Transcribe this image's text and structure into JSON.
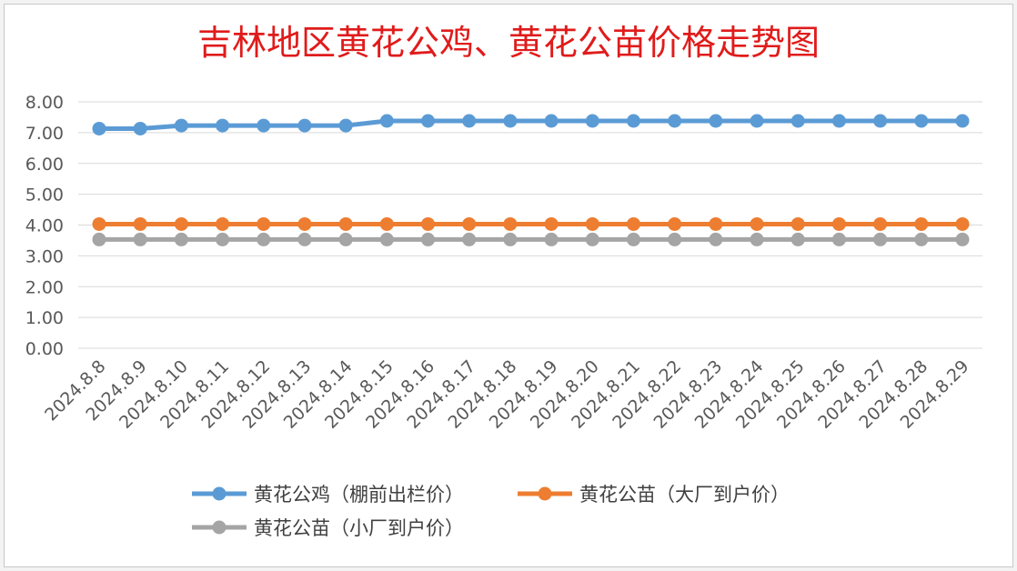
{
  "chart_data": {
    "type": "line",
    "title": "吉林地区黄花公鸡、黄花公苗价格走势图",
    "title_color": "#e01b1b",
    "categories": [
      "2024.8.8",
      "2024.8.9",
      "2024.8.10",
      "2024.8.11",
      "2024.8.12",
      "2024.8.13",
      "2024.8.14",
      "2024.8.15",
      "2024.8.16",
      "2024.8.17",
      "2024.8.18",
      "2024.8.19",
      "2024.8.20",
      "2024.8.21",
      "2024.8.22",
      "2024.8.23",
      "2024.8.24",
      "2024.8.25",
      "2024.8.26",
      "2024.8.27",
      "2024.8.28",
      "2024.8.29"
    ],
    "y_ticks": [
      "0.00",
      "1.00",
      "2.00",
      "3.00",
      "4.00",
      "5.00",
      "6.00",
      "7.00",
      "8.00"
    ],
    "ylim": [
      0,
      8
    ],
    "grid": true,
    "legend_position": "bottom",
    "series": [
      {
        "name": "黄花公鸡（棚前出栏价）",
        "color": "#5b9bd5",
        "values": [
          7.13,
          7.13,
          7.23,
          7.23,
          7.23,
          7.23,
          7.23,
          7.38,
          7.38,
          7.38,
          7.38,
          7.38,
          7.38,
          7.38,
          7.38,
          7.38,
          7.38,
          7.38,
          7.38,
          7.38,
          7.38,
          7.38
        ]
      },
      {
        "name": "黄花公苗（大厂到户价）",
        "color": "#ed7d31",
        "values": [
          4.03,
          4.03,
          4.03,
          4.03,
          4.03,
          4.03,
          4.03,
          4.03,
          4.03,
          4.03,
          4.03,
          4.03,
          4.03,
          4.03,
          4.03,
          4.03,
          4.03,
          4.03,
          4.03,
          4.03,
          4.03,
          4.03
        ]
      },
      {
        "name": "黄花公苗（小厂到户价）",
        "color": "#a5a5a5",
        "values": [
          3.53,
          3.53,
          3.53,
          3.53,
          3.53,
          3.53,
          3.53,
          3.53,
          3.53,
          3.53,
          3.53,
          3.53,
          3.53,
          3.53,
          3.53,
          3.53,
          3.53,
          3.53,
          3.53,
          3.53,
          3.53,
          3.53
        ]
      }
    ]
  }
}
